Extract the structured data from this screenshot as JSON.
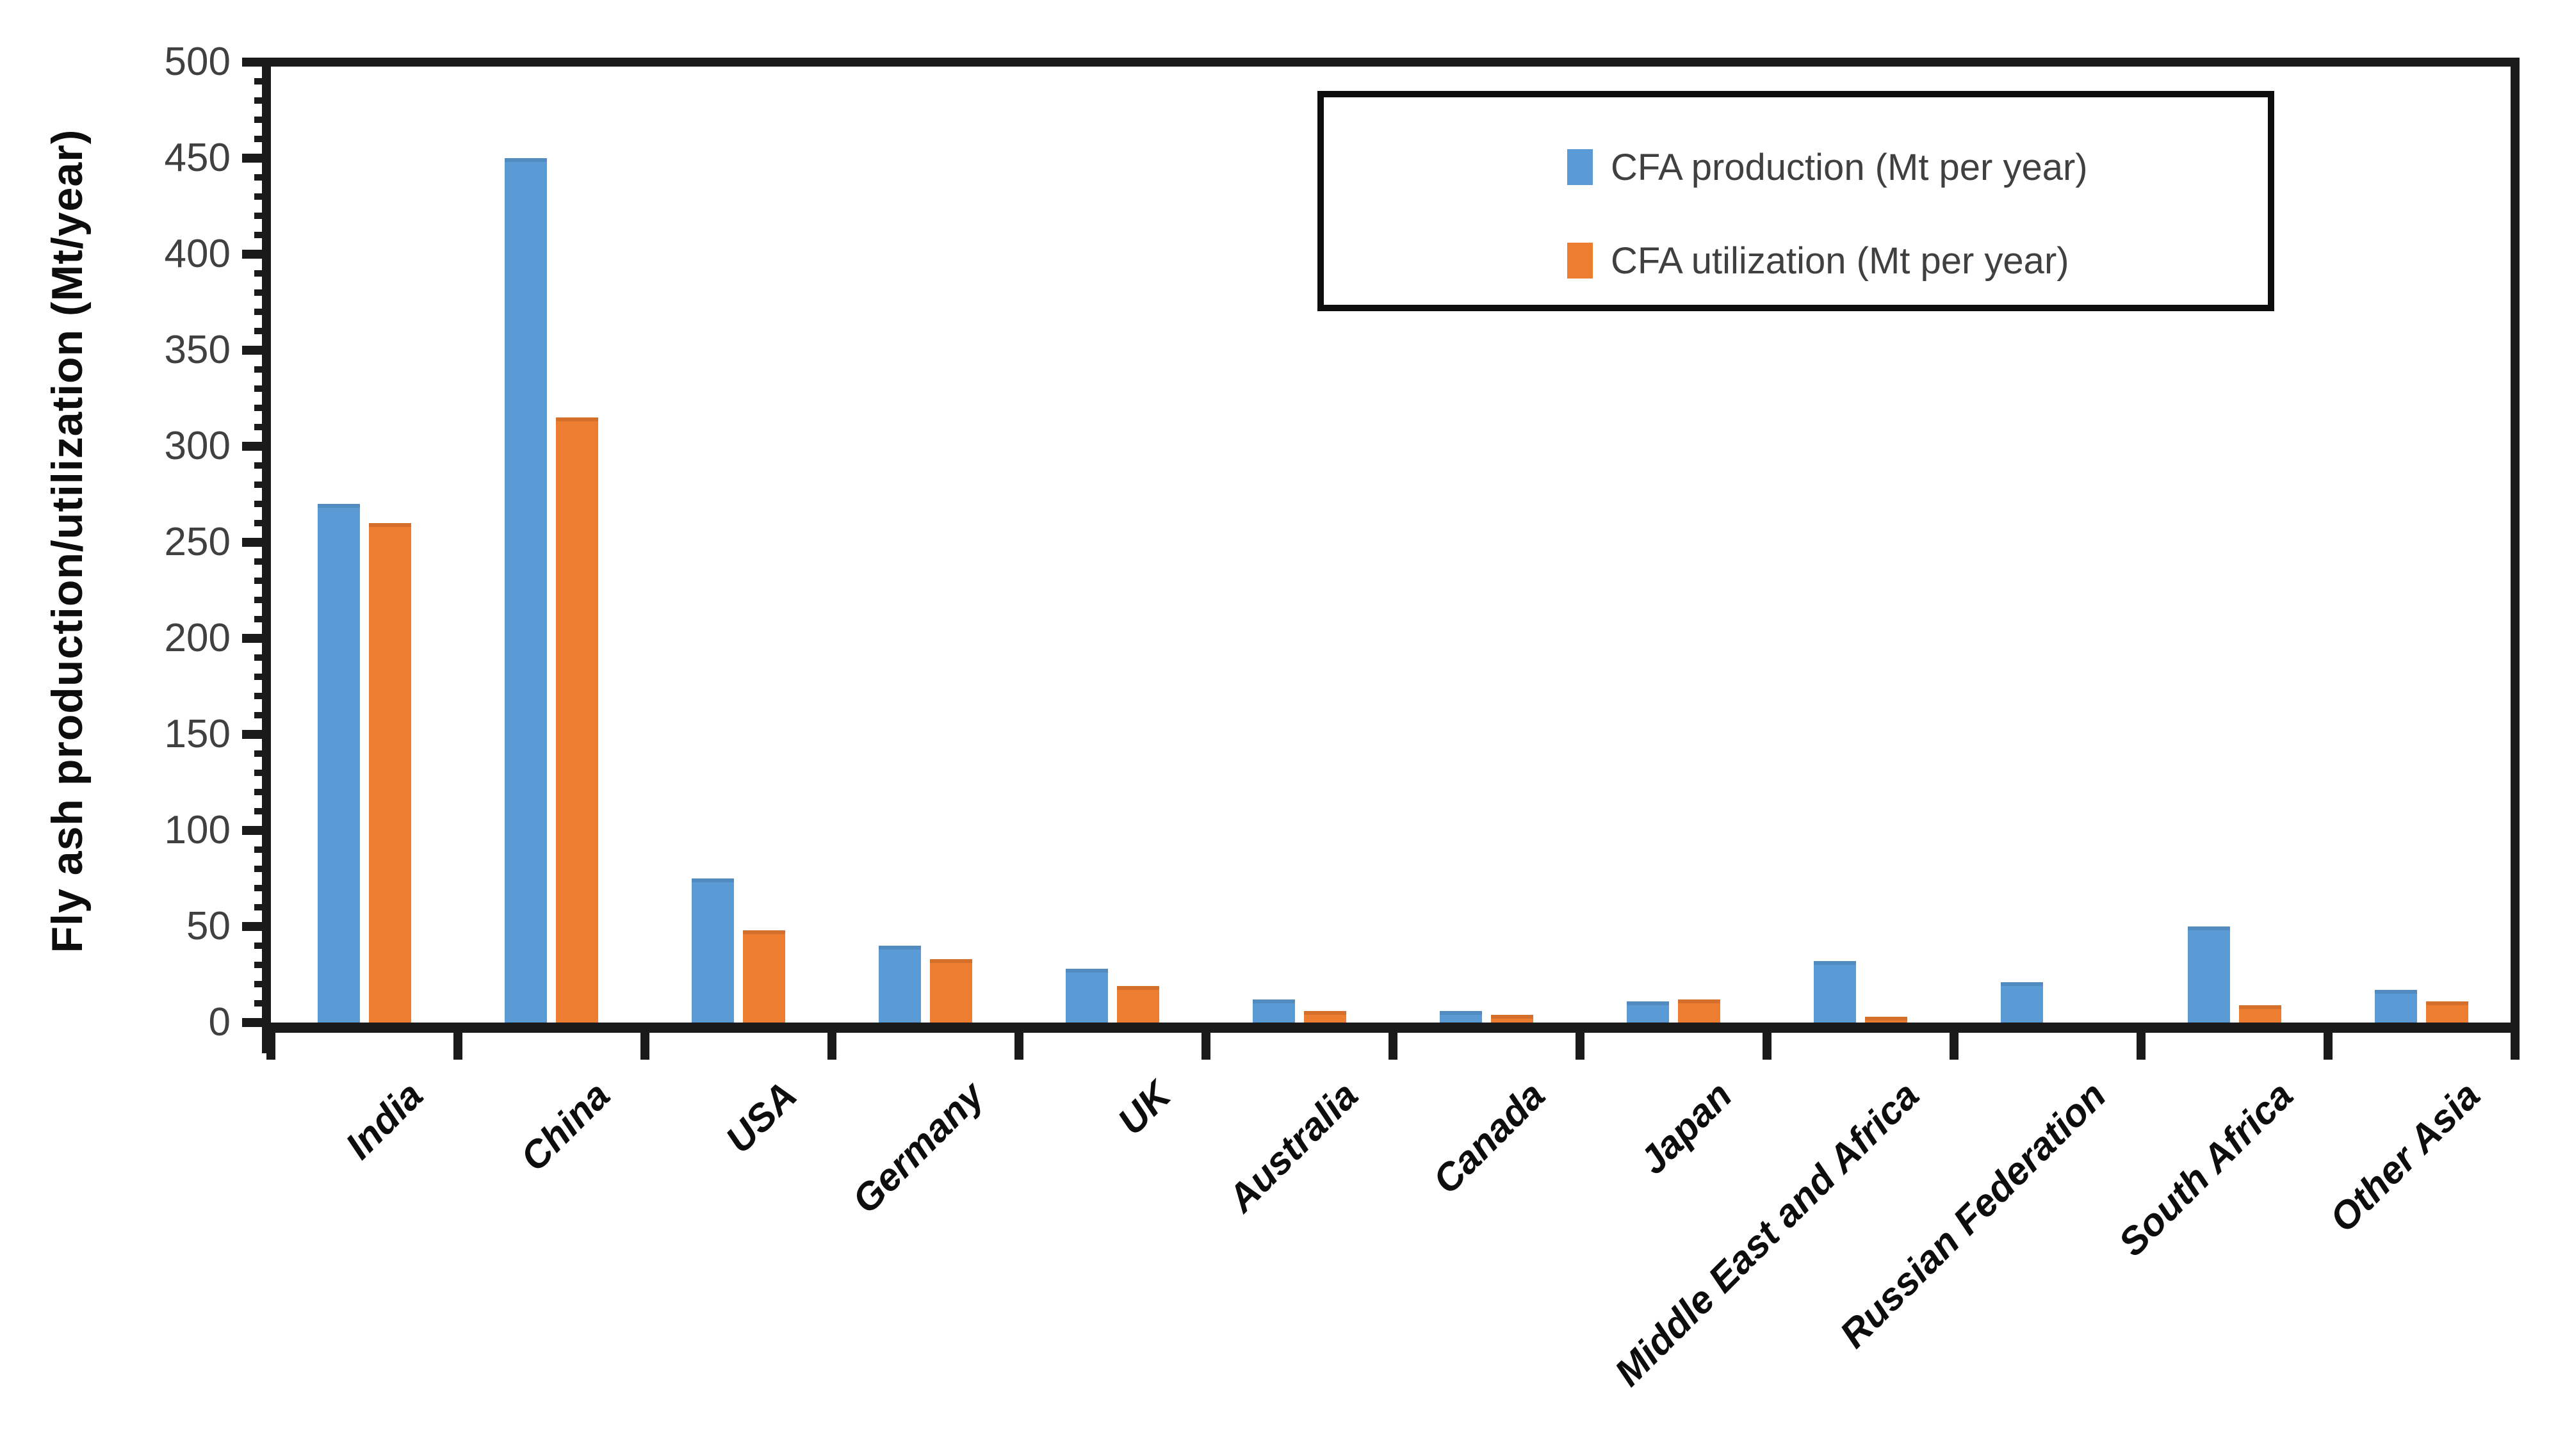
{
  "chart_data": {
    "type": "bar",
    "title": "",
    "xlabel": "",
    "ylabel": "Fly ash production/utilization (Mt/year)",
    "categories": [
      "India",
      "China",
      "USA",
      "Germany",
      "UK",
      "Australia",
      "Canada",
      "Japan",
      "Middle East and Africa",
      "Russian Federation",
      "South Africa",
      "Other Asia"
    ],
    "series": [
      {
        "name": "CFA production (Mt per year)",
        "color": "#5B9BD5",
        "values": [
          270,
          450,
          75,
          40,
          28,
          12,
          6,
          11,
          32,
          21,
          50,
          17
        ]
      },
      {
        "name": "CFA utilization (Mt per year)",
        "color": "#ED7D31",
        "values": [
          260,
          315,
          48,
          33,
          19,
          6,
          4,
          12,
          3,
          0,
          9,
          11
        ]
      }
    ],
    "ylim": [
      0,
      500
    ],
    "ytick_step": 50,
    "ytick_labels": [
      "0",
      "50",
      "100",
      "150",
      "200",
      "250",
      "300",
      "350",
      "400",
      "450",
      "500"
    ],
    "yminor_step": 10,
    "grid": false,
    "legend_position": "top-right",
    "axis_color": "#1a1a1a",
    "tick_label_color": "#404040",
    "x_label_color": "#0d0d0d"
  }
}
